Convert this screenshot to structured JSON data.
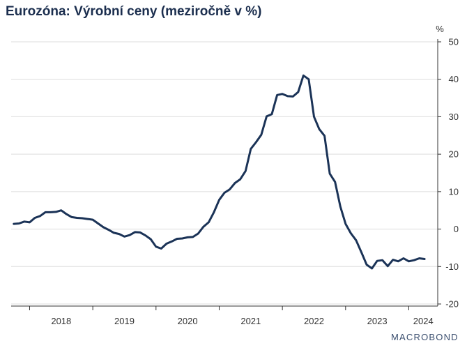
{
  "title": "Eurozóna: Výrobní ceny (meziročně v %)",
  "brand": "MACROBOND",
  "colors": {
    "line": "#1b3357",
    "grid": "#dddddd",
    "axis": "#333333",
    "title": "#1b2e4e"
  },
  "chart_data": {
    "type": "line",
    "title": "Eurozóna: Výrobní ceny (meziročně v %)",
    "ylabel": "%",
    "xlabel": "",
    "ylim": [
      -20,
      50
    ],
    "yticks": [
      50,
      40,
      30,
      20,
      10,
      0,
      -10,
      -20
    ],
    "xlim": [
      2017.708,
      2024.458
    ],
    "year_labels": [
      "2018",
      "2019",
      "2020",
      "2021",
      "2022",
      "2023",
      "2024"
    ],
    "grid": true,
    "legend": "none",
    "series": [
      {
        "x": [
          2017.75,
          2017.833,
          2017.917,
          2018.0,
          2018.083,
          2018.167,
          2018.25,
          2018.333,
          2018.417,
          2018.5,
          2018.583,
          2018.667,
          2018.75,
          2018.833,
          2018.917,
          2019.0,
          2019.083,
          2019.167,
          2019.25,
          2019.333,
          2019.417,
          2019.5,
          2019.583,
          2019.667,
          2019.75,
          2019.833,
          2019.917,
          2020.0,
          2020.083,
          2020.167,
          2020.25,
          2020.333,
          2020.417,
          2020.5,
          2020.583,
          2020.667,
          2020.75,
          2020.833,
          2020.917,
          2021.0,
          2021.083,
          2021.167,
          2021.25,
          2021.333,
          2021.417,
          2021.5,
          2021.583,
          2021.667,
          2021.75,
          2021.833,
          2021.917,
          2022.0,
          2022.083,
          2022.167,
          2022.25,
          2022.333,
          2022.417,
          2022.5,
          2022.583,
          2022.667,
          2022.75,
          2022.833,
          2022.917,
          2023.0,
          2023.083,
          2023.167,
          2023.25,
          2023.333,
          2023.417,
          2023.5,
          2023.583,
          2023.667,
          2023.75,
          2023.833,
          2023.917,
          2024.0,
          2024.083,
          2024.167,
          2024.25
        ],
        "values": [
          1.4,
          1.5,
          2.0,
          1.8,
          3.0,
          3.5,
          4.5,
          4.5,
          4.6,
          5.0,
          4.0,
          3.2,
          3.0,
          2.9,
          2.7,
          2.5,
          1.5,
          0.5,
          -0.2,
          -1.0,
          -1.3,
          -2.0,
          -1.6,
          -0.8,
          -0.9,
          -1.7,
          -2.7,
          -4.7,
          -5.2,
          -3.9,
          -3.3,
          -2.6,
          -2.5,
          -2.2,
          -2.1,
          -1.2,
          0.6,
          1.8,
          4.5,
          7.8,
          9.7,
          10.6,
          12.3,
          13.3,
          15.5,
          21.4,
          23.2,
          25.2,
          30.1,
          30.7,
          35.8,
          36.1,
          35.5,
          35.4,
          36.6,
          41.0,
          40.0,
          30.0,
          26.7,
          24.9,
          14.8,
          12.6,
          6.0,
          1.4,
          -1.1,
          -3.0,
          -6.2,
          -9.5,
          -10.5,
          -8.5,
          -8.3,
          -9.9,
          -8.2,
          -8.6,
          -7.8,
          -8.6,
          -8.3,
          -7.8,
          -8.0
        ]
      }
    ]
  }
}
